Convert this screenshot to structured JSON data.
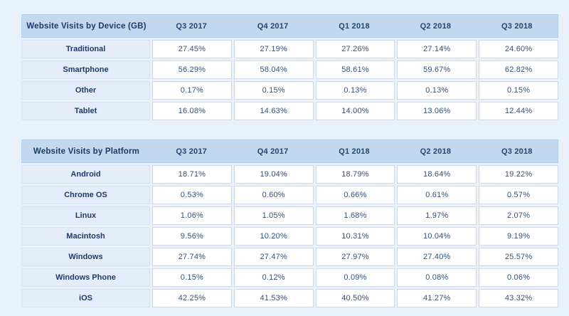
{
  "colors": {
    "page_background": "#e9f1fb",
    "header_background": "#c0d9f1",
    "label_cell_background": "#e4ecf9",
    "value_cell_background": "#ffffff",
    "text_navy": "#1e3c6a"
  },
  "chart_data": [
    {
      "type": "table",
      "title": "Website Visits by Device (GB)",
      "columns": [
        "Q3 2017",
        "Q4 2017",
        "Q1 2018",
        "Q2 2018",
        "Q3 2018"
      ],
      "rows": [
        {
          "label": "Traditional",
          "values": [
            "27.45%",
            "27.19%",
            "27.26%",
            "27.14%",
            "24.60%"
          ]
        },
        {
          "label": "Smartphone",
          "values": [
            "56.29%",
            "58.04%",
            "58.61%",
            "59.67%",
            "62.82%"
          ]
        },
        {
          "label": "Other",
          "values": [
            "0.17%",
            "0.15%",
            "0.13%",
            "0.13%",
            "0.15%"
          ]
        },
        {
          "label": "Tablet",
          "values": [
            "16.08%",
            "14.63%",
            "14.00%",
            "13.06%",
            "12.44%"
          ]
        }
      ]
    },
    {
      "type": "table",
      "title": "Website Visits by Platform",
      "columns": [
        "Q3 2017",
        "Q4 2017",
        "Q1 2018",
        "Q2 2018",
        "Q3 2018"
      ],
      "rows": [
        {
          "label": "Android",
          "values": [
            "18.71%",
            "19.04%",
            "18.79%",
            "18.64%",
            "19.22%"
          ]
        },
        {
          "label": "Chrome OS",
          "values": [
            "0.53%",
            "0.60%",
            "0.66%",
            "0.61%",
            "0.57%"
          ]
        },
        {
          "label": "Linux",
          "values": [
            "1.06%",
            "1.05%",
            "1.68%",
            "1.97%",
            "2.07%"
          ]
        },
        {
          "label": "Macintosh",
          "values": [
            "9.56%",
            "10.20%",
            "10.31%",
            "10.04%",
            "9.19%"
          ]
        },
        {
          "label": "Windows",
          "values": [
            "27.74%",
            "27.47%",
            "27.97%",
            "27.40%",
            "25.57%"
          ]
        },
        {
          "label": "Windows Phone",
          "values": [
            "0.15%",
            "0.12%",
            "0.09%",
            "0.08%",
            "0.06%"
          ]
        },
        {
          "label": "iOS",
          "values": [
            "42.25%",
            "41.53%",
            "40.50%",
            "41.27%",
            "43.32%"
          ]
        }
      ]
    }
  ]
}
